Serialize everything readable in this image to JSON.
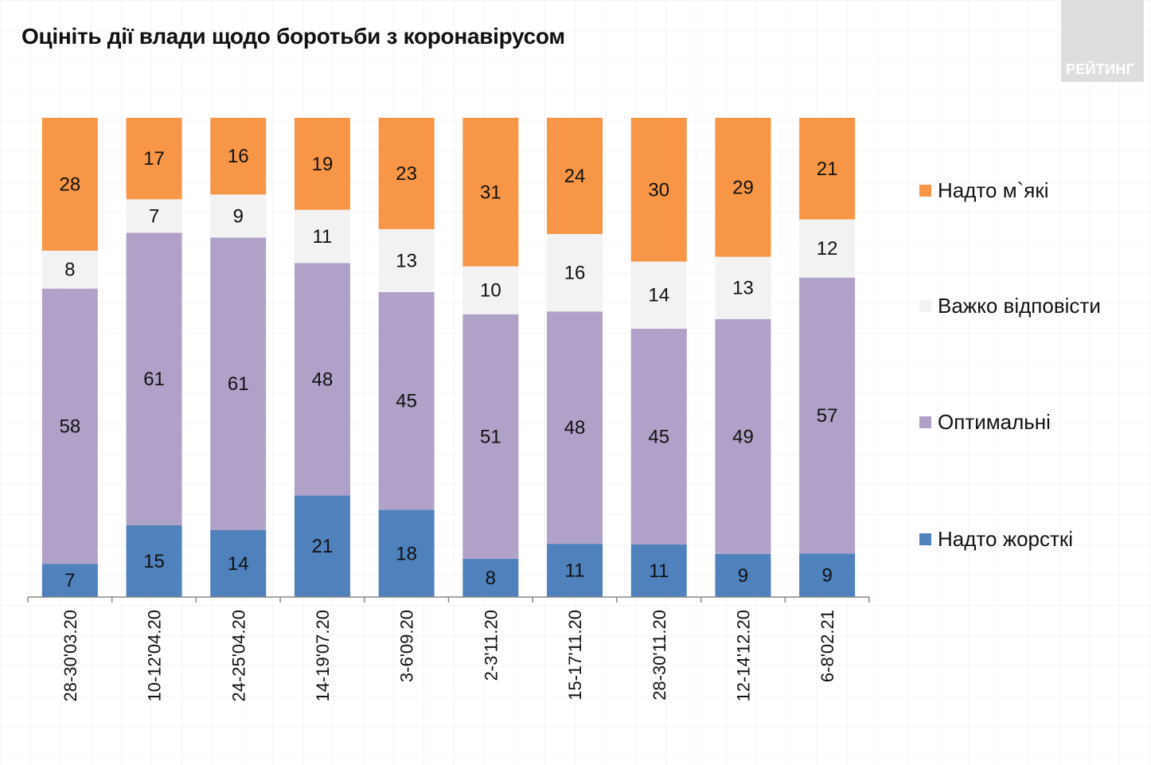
{
  "title": "Оцініть дії влади щодо боротьби з коронавірусом",
  "logo": {
    "text": "РЕЙТИНГ"
  },
  "colors": {
    "soft": "#f79646",
    "hard_to_say": "#f2f2f2",
    "optimal": "#b0a1c8",
    "harsh": "#4f81bd",
    "axis": "#888888",
    "logo_bg": "#dedede"
  },
  "chart_data": {
    "type": "bar",
    "stacked": true,
    "title": "Оцініть дії влади щодо боротьби з коронавірусом",
    "xlabel": "",
    "ylabel": "",
    "ylim": [
      0,
      100
    ],
    "grid": false,
    "legend_position": "right",
    "categories": [
      "28-30'03.20",
      "10-12'04.20",
      "24-25'04.20",
      "14-19'07.20",
      "3-6'09.20",
      "2-3'11.20",
      "15-17'11.20",
      "28-30'11.20",
      "12-14'12.20",
      "6-8'02.21"
    ],
    "series": [
      {
        "name": "Надто жорсткі",
        "color": "#4f81bd",
        "values": [
          7,
          15,
          14,
          21,
          18,
          8,
          11,
          11,
          9,
          9
        ]
      },
      {
        "name": "Оптимальні",
        "color": "#b0a1c8",
        "values": [
          58,
          61,
          61,
          48,
          45,
          51,
          48,
          45,
          49,
          57
        ]
      },
      {
        "name": "Важко відповісти",
        "color": "#f2f2f2",
        "values": [
          8,
          7,
          9,
          11,
          13,
          10,
          16,
          14,
          13,
          12
        ]
      },
      {
        "name": "Надто м`які",
        "color": "#f79646",
        "values": [
          28,
          17,
          16,
          19,
          23,
          31,
          24,
          30,
          29,
          21
        ]
      }
    ]
  },
  "legend": [
    {
      "label": "Надто м`які",
      "color": "#f79646"
    },
    {
      "label": "Важко відповісти",
      "color": "#f2f2f2"
    },
    {
      "label": "Оптимальні",
      "color": "#b0a1c8"
    },
    {
      "label": "Надто жорсткі",
      "color": "#4f81bd"
    }
  ]
}
